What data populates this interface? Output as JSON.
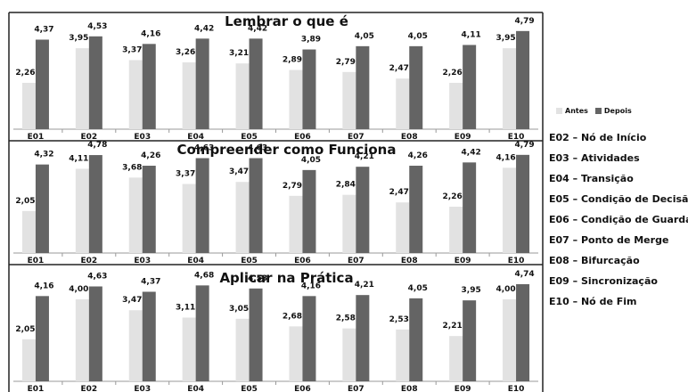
{
  "colors": {
    "antes": "#e2e2e2",
    "depois": "#646464",
    "frame": "#222222",
    "text": "#111111"
  },
  "chart_data": [
    {
      "type": "bar",
      "title": "Lembrar o que é",
      "categories": [
        "E01",
        "E02",
        "E03",
        "E04",
        "E05",
        "E06",
        "E07",
        "E08",
        "E09",
        "E10"
      ],
      "series": [
        {
          "name": "Antes",
          "values": [
            2.26,
            3.95,
            3.37,
            3.26,
            3.21,
            2.89,
            2.79,
            2.47,
            2.26,
            3.95
          ]
        },
        {
          "name": "Depois",
          "values": [
            4.37,
            4.53,
            4.16,
            4.42,
            4.42,
            3.89,
            4.05,
            4.05,
            4.11,
            4.79
          ]
        }
      ],
      "ylim": [
        0,
        5
      ],
      "grid": false
    },
    {
      "type": "bar",
      "title": "Compreender como Funciona",
      "categories": [
        "E01",
        "E02",
        "E03",
        "E04",
        "E05",
        "E06",
        "E07",
        "E08",
        "E09",
        "E10"
      ],
      "series": [
        {
          "name": "Antes",
          "values": [
            2.05,
            4.11,
            3.68,
            3.37,
            3.47,
            2.79,
            2.84,
            2.47,
            2.26,
            4.16
          ]
        },
        {
          "name": "Depois",
          "values": [
            4.32,
            4.78,
            4.26,
            4.63,
            4.63,
            4.05,
            4.21,
            4.26,
            4.42,
            4.79
          ]
        }
      ],
      "ylim": [
        0,
        5
      ],
      "grid": false
    },
    {
      "type": "bar",
      "title": "Aplicar na Prática",
      "categories": [
        "E01",
        "E02",
        "E03",
        "E04",
        "E05",
        "E06",
        "E07",
        "E08",
        "E09",
        "E10"
      ],
      "series": [
        {
          "name": "Antes",
          "values": [
            2.05,
            4.0,
            3.47,
            3.11,
            3.05,
            2.68,
            2.58,
            2.53,
            2.21,
            4.0
          ]
        },
        {
          "name": "Depois",
          "values": [
            4.16,
            4.63,
            4.37,
            4.68,
            4.53,
            4.16,
            4.21,
            4.05,
            3.95,
            4.74
          ]
        }
      ],
      "ylim": [
        0,
        5
      ],
      "grid": false
    }
  ],
  "legend": {
    "series": [
      "Antes",
      "Depois"
    ],
    "items": [
      "E02 – Nó de Início",
      "E03 – Atividades",
      "E04 – Transição",
      "E05 – Condição de Decisão",
      "E06 – Condição de Guarda",
      "E07 – Ponto de Merge",
      "E08 – Bifurcação",
      "E09 – Sincronização",
      "E10 – Nó de Fim"
    ]
  }
}
